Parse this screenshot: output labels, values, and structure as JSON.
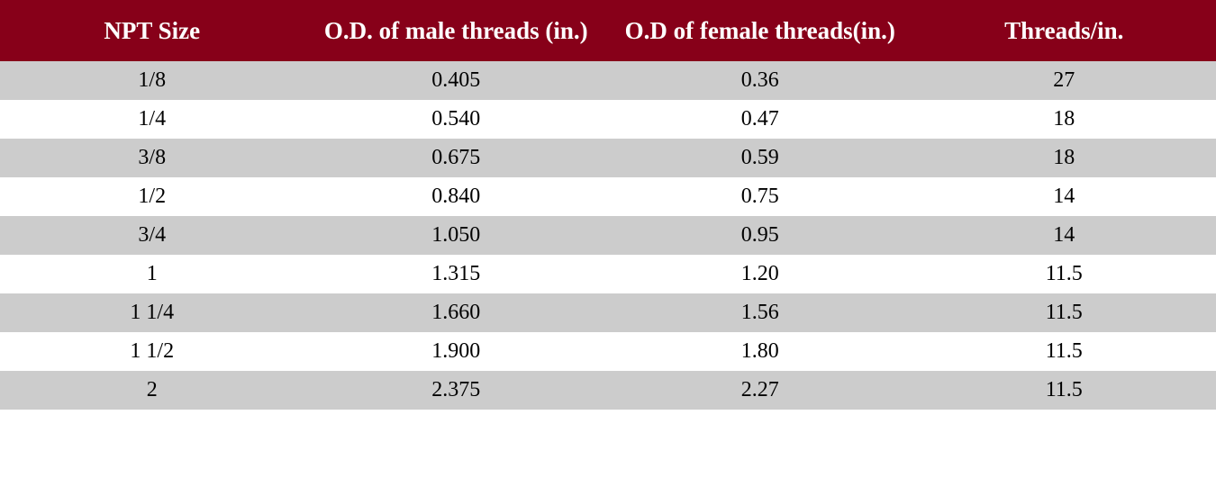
{
  "table": {
    "type": "table",
    "header_bg_color": "#870019",
    "header_text_color": "#ffffff",
    "row_odd_bg_color": "#cccccc",
    "row_even_bg_color": "#ffffff",
    "body_text_color": "#000000",
    "header_fontsize": 27,
    "body_fontsize": 24,
    "columns": [
      {
        "label": "NPT Size"
      },
      {
        "label": "O.D. of male threads (in.)"
      },
      {
        "label": "O.D of female threads(in.)"
      },
      {
        "label": "Threads/in."
      }
    ],
    "rows": [
      [
        "1/8",
        "0.405",
        "0.36",
        "27"
      ],
      [
        "1/4",
        "0.540",
        "0.47",
        "18"
      ],
      [
        "3/8",
        "0.675",
        "0.59",
        "18"
      ],
      [
        "1/2",
        "0.840",
        "0.75",
        "14"
      ],
      [
        "3/4",
        "1.050",
        "0.95",
        "14"
      ],
      [
        "1",
        "1.315",
        "1.20",
        "11.5"
      ],
      [
        "1 1/4",
        "1.660",
        "1.56",
        "11.5"
      ],
      [
        "1 1/2",
        "1.900",
        "1.80",
        "11.5"
      ],
      [
        "2",
        "2.375",
        "2.27",
        "11.5"
      ]
    ]
  }
}
